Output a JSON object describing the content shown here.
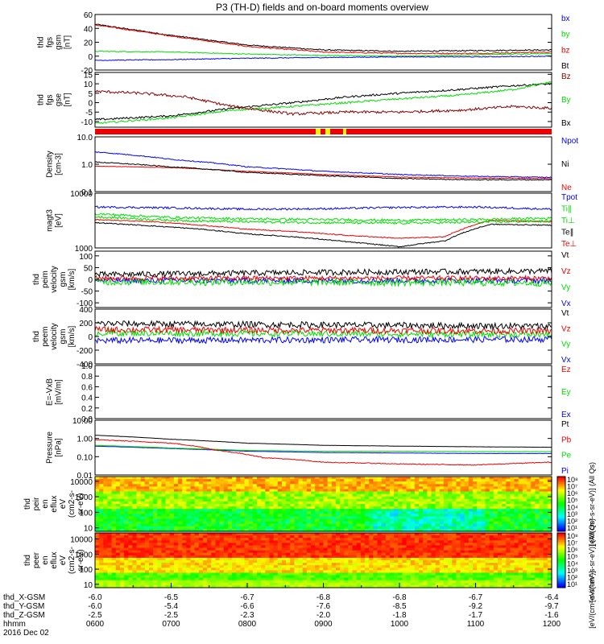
{
  "title": "P3 (TH-D) fields and on-board moments overview",
  "colors": {
    "black": "#000000",
    "red": "#ee0000",
    "green": "#00dd00",
    "blue": "#0000ff",
    "darkred": "#8b0000",
    "yellow": "#ffee00"
  },
  "chart_data": [
    {
      "type": "line",
      "name": "fgs-gsm",
      "ylabel": [
        "thd",
        "fgs",
        "gsm",
        "[nT]"
      ],
      "yscale": "linear",
      "ylim": [
        -20,
        60
      ],
      "ticks": [
        {
          "v": 60,
          "t": "60"
        },
        {
          "v": 40,
          "t": "40"
        },
        {
          "v": 20,
          "t": "20"
        },
        {
          "v": 0,
          "t": "0"
        },
        {
          "v": -20,
          "t": "-20"
        }
      ],
      "series": [
        {
          "name": "Bt",
          "color": "black",
          "x": [
            0,
            1,
            2,
            3,
            4,
            5,
            6
          ],
          "values": [
            46,
            30,
            16,
            9,
            7,
            8,
            9
          ],
          "noise": 0.8
        },
        {
          "name": "bz",
          "color": "red",
          "x": [
            0,
            1,
            2,
            3,
            4,
            5,
            6
          ],
          "values": [
            45,
            29,
            14,
            6,
            4,
            4,
            6
          ],
          "noise": 0.8
        },
        {
          "name": "by",
          "color": "green",
          "x": [
            0,
            1,
            2,
            3,
            4,
            5,
            6
          ],
          "values": [
            7,
            6,
            3,
            1,
            0,
            2,
            4
          ],
          "noise": 0.6
        },
        {
          "name": "bx",
          "color": "blue",
          "x": [
            0,
            1,
            2,
            3,
            4,
            5,
            6
          ],
          "values": [
            -6,
            -5,
            -3,
            -2,
            -1,
            -1,
            0
          ],
          "noise": 0.6
        }
      ]
    },
    {
      "type": "line",
      "name": "fgs-gse",
      "ylabel": [
        "thd",
        "fgs",
        "gse",
        "[nT]"
      ],
      "yscale": "linear",
      "ylim": [
        -13,
        16
      ],
      "ticks": [
        {
          "v": 15,
          "t": "15"
        },
        {
          "v": 10,
          "t": "10"
        },
        {
          "v": 5,
          "t": "5"
        },
        {
          "v": 0,
          "t": "0"
        },
        {
          "v": -5,
          "t": "-5"
        },
        {
          "v": -10,
          "t": "-10"
        }
      ],
      "series": [
        {
          "name": "Bx",
          "color": "black",
          "x": [
            0,
            1,
            1.8,
            2.6,
            3.3,
            4,
            4.8,
            5.5,
            6
          ],
          "values": [
            -9,
            -7,
            -3,
            0,
            3,
            5,
            7,
            9,
            10
          ],
          "noise": 0.5
        },
        {
          "name": "By",
          "color": "green",
          "x": [
            0,
            1,
            1.8,
            2.6,
            3.3,
            4,
            4.8,
            5.5,
            6
          ],
          "values": [
            -11,
            -8,
            -4,
            -2,
            0,
            2,
            4,
            7,
            11
          ],
          "noise": 0.5
        },
        {
          "name": "Bz",
          "color": "darkred",
          "x": [
            0,
            0.6,
            1.2,
            1.8,
            2.6,
            3.3,
            4,
            4.8,
            5.5,
            6
          ],
          "values": [
            6,
            5,
            3,
            -2,
            -6,
            -5,
            -5,
            -4,
            -2,
            -3
          ],
          "noise": 0.7
        }
      ]
    },
    {
      "type": "line",
      "name": "density",
      "ylabel": [
        "Density",
        "[cm-3]"
      ],
      "yscale": "log",
      "ylim": [
        0.1,
        10
      ],
      "ticks": [
        {
          "v": 10,
          "t": "10.0"
        },
        {
          "v": 1,
          "t": "1.0"
        },
        {
          "v": 0.1,
          "t": "0.1"
        }
      ],
      "series": [
        {
          "name": "Ne",
          "color": "red",
          "x": [
            0,
            1,
            2,
            3,
            4,
            5,
            6
          ],
          "values": [
            0.85,
            0.75,
            0.55,
            0.42,
            0.34,
            0.31,
            0.3
          ],
          "noise": 0.02
        },
        {
          "name": "Ni",
          "color": "black",
          "x": [
            0,
            1,
            2,
            3,
            4,
            5,
            6
          ],
          "values": [
            1.2,
            0.8,
            0.5,
            0.38,
            0.3,
            0.27,
            0.27
          ],
          "noise": 0.04
        },
        {
          "name": "Npot",
          "color": "blue",
          "x": [
            0,
            1,
            2,
            3,
            4,
            5,
            6
          ],
          "values": [
            2.8,
            1.5,
            0.8,
            0.55,
            0.42,
            0.36,
            0.33
          ],
          "noise": 0.04
        }
      ]
    },
    {
      "type": "line",
      "name": "temperature",
      "ylabel": [
        "magt3",
        "[eV]"
      ],
      "yscale": "log",
      "ylim": [
        1000,
        10000
      ],
      "ticks": [
        {
          "v": 10000,
          "t": "10000"
        },
        {
          "v": 1000,
          "t": "1000"
        }
      ],
      "series": [
        {
          "name": "Te⊥",
          "color": "red",
          "x": [
            0,
            0.8,
            1.4,
            2,
            2.6,
            3.3,
            4,
            4.6,
            5.2,
            6
          ],
          "values": [
            3300,
            3000,
            2600,
            2200,
            2000,
            1700,
            1500,
            1600,
            3200,
            3000
          ],
          "noise": 0.02
        },
        {
          "name": "Te∥",
          "color": "black",
          "x": [
            0,
            0.8,
            1.4,
            2,
            2.6,
            3.3,
            4,
            4.6,
            5.2,
            6
          ],
          "values": [
            2900,
            2500,
            2200,
            1800,
            1600,
            1300,
            1050,
            1350,
            2700,
            2600
          ],
          "noise": 0.02
        },
        {
          "name": "Ti⊥",
          "color": "green",
          "x": [
            0,
            1,
            2,
            3,
            4,
            5,
            6
          ],
          "values": [
            4200,
            3600,
            3400,
            3300,
            3200,
            3300,
            3500
          ],
          "noise": 0.05
        },
        {
          "name": "Ti∥",
          "color": "green",
          "x": [
            0,
            1,
            2,
            3,
            4,
            5,
            6
          ],
          "values": [
            3700,
            3200,
            3000,
            2900,
            2850,
            2950,
            3100
          ],
          "noise": 0.05
        },
        {
          "name": "Tpot",
          "color": "blue",
          "x": [
            0,
            1,
            2,
            3,
            4,
            5,
            6
          ],
          "values": [
            5600,
            5400,
            5100,
            5200,
            5500,
            5600,
            5100
          ],
          "noise": 0.04
        }
      ]
    },
    {
      "type": "line",
      "name": "peim-velocity",
      "ylabel": [
        "thd",
        "peim",
        "velocity",
        "gsm",
        "[km/s]"
      ],
      "yscale": "linear",
      "ylim": [
        -120,
        120
      ],
      "ticks": [
        {
          "v": 100,
          "t": "100"
        },
        {
          "v": 50,
          "t": "50"
        },
        {
          "v": 0,
          "t": "0"
        },
        {
          "v": -50,
          "t": "-50"
        },
        {
          "v": -100,
          "t": "-100"
        }
      ],
      "series": [
        {
          "name": "Vx",
          "color": "blue",
          "x": [
            0,
            6
          ],
          "values": [
            -5,
            -5
          ],
          "noise": 12
        },
        {
          "name": "Vy",
          "color": "green",
          "x": [
            0,
            6
          ],
          "values": [
            -10,
            -15
          ],
          "noise": 15
        },
        {
          "name": "Vz",
          "color": "red",
          "x": [
            0,
            6
          ],
          "values": [
            5,
            5
          ],
          "noise": 10
        },
        {
          "name": "Vt",
          "color": "black",
          "x": [
            0,
            3,
            6
          ],
          "values": [
            20,
            30,
            35
          ],
          "noise": 12
        }
      ]
    },
    {
      "type": "line",
      "name": "peem-velocity",
      "ylabel": [
        "thd",
        "peem",
        "velocity",
        "gsm",
        "[km/s]"
      ],
      "yscale": "linear",
      "ylim": [
        -400,
        400
      ],
      "ticks": [
        {
          "v": 400,
          "t": "400"
        },
        {
          "v": 200,
          "t": "200"
        },
        {
          "v": 0,
          "t": "0"
        },
        {
          "v": -200,
          "t": "-200"
        },
        {
          "v": -400,
          "t": "-400"
        }
      ],
      "series": [
        {
          "name": "Vx",
          "color": "blue",
          "x": [
            0,
            6
          ],
          "values": [
            -60,
            -40
          ],
          "noise": 45
        },
        {
          "name": "Vy",
          "color": "green",
          "x": [
            0,
            6
          ],
          "values": [
            50,
            30
          ],
          "noise": 45
        },
        {
          "name": "Vz",
          "color": "red",
          "x": [
            0,
            6
          ],
          "values": [
            100,
            80
          ],
          "noise": 45
        },
        {
          "name": "Vt",
          "color": "black",
          "x": [
            0,
            6
          ],
          "values": [
            190,
            150
          ],
          "noise": 45
        }
      ]
    },
    {
      "type": "line",
      "name": "e-field",
      "ylabel": [
        "E=-VxB",
        "[mV/m]"
      ],
      "yscale": "linear",
      "ylim": [
        0,
        1
      ],
      "ticks": [
        {
          "v": 1,
          "t": "1.0"
        },
        {
          "v": 0.8,
          "t": "0.8"
        },
        {
          "v": 0.6,
          "t": "0.6"
        },
        {
          "v": 0.4,
          "t": "0.4"
        },
        {
          "v": 0.2,
          "t": "0.2"
        },
        {
          "v": 0,
          "t": "0.0"
        }
      ],
      "series": [
        {
          "name": "Ex",
          "color": "blue",
          "x": [],
          "values": []
        },
        {
          "name": "Ey",
          "color": "green",
          "x": [],
          "values": []
        },
        {
          "name": "Ez",
          "color": "red",
          "x": [],
          "values": []
        }
      ]
    },
    {
      "type": "line",
      "name": "pressure",
      "ylabel": [
        "Pressure",
        "[nPa]"
      ],
      "yscale": "log",
      "ylim": [
        0.01,
        10
      ],
      "ticks": [
        {
          "v": 10,
          "t": "10.00"
        },
        {
          "v": 1,
          "t": "1.00"
        },
        {
          "v": 0.1,
          "t": "0.10"
        },
        {
          "v": 0.01,
          "t": "0.01"
        }
      ],
      "series": [
        {
          "name": "Pi",
          "color": "blue",
          "x": [
            0,
            1,
            2,
            3,
            4,
            5,
            6
          ],
          "values": [
            0.38,
            0.28,
            0.2,
            0.17,
            0.16,
            0.15,
            0.15
          ],
          "noise": 0.01
        },
        {
          "name": "Pe",
          "color": "green",
          "x": [
            0,
            1,
            2,
            3,
            4,
            5,
            6
          ],
          "values": [
            0.42,
            0.3,
            0.22,
            0.2,
            0.2,
            0.19,
            0.19
          ],
          "noise": 0.01
        },
        {
          "name": "Pb",
          "color": "red",
          "x": [
            0,
            1,
            1.6,
            2.2,
            3,
            4,
            5,
            6
          ],
          "values": [
            0.85,
            0.55,
            0.22,
            0.09,
            0.05,
            0.04,
            0.035,
            0.05
          ],
          "noise": 0.05
        },
        {
          "name": "Pt",
          "color": "black",
          "x": [
            0,
            1,
            2,
            3,
            4,
            5,
            6
          ],
          "values": [
            1.5,
            0.9,
            0.55,
            0.42,
            0.38,
            0.35,
            0.33
          ],
          "noise": 0.01
        }
      ]
    },
    {
      "type": "heatmap",
      "name": "peir-en-eflux",
      "ylabel": [
        "thd",
        "peir",
        "en",
        "eflux",
        "eV",
        "(cm2-s-",
        "sr-eV)"
      ],
      "yscale": "log",
      "ylim": [
        6,
        20000
      ],
      "ticks": [
        {
          "v": 10000,
          "t": "10000"
        },
        {
          "v": 1000,
          "t": "1000"
        },
        {
          "v": 100,
          "t": "100"
        },
        {
          "v": 10,
          "t": "10"
        }
      ]
    },
    {
      "type": "heatmap",
      "name": "peer-en-eflux",
      "ylabel": [
        "thd",
        "peer",
        "en",
        "eflux",
        "eV",
        "(cm2-s-",
        "sr-eV)"
      ],
      "yscale": "log",
      "ylim": [
        6,
        25000
      ],
      "ticks": [
        {
          "v": 10000,
          "t": "10000"
        },
        {
          "v": 1000,
          "t": "1000"
        },
        {
          "v": 100,
          "t": "100"
        },
        {
          "v": 10,
          "t": "10"
        }
      ]
    }
  ],
  "xaxis": {
    "rows": [
      {
        "label": "thd_X-GSM",
        "values": [
          "-6.0",
          "-6.5",
          "-6.7",
          "-6.8",
          "-6.8",
          "-6.7",
          "-6.4"
        ]
      },
      {
        "label": "thd_Y-GSM",
        "values": [
          "-6.0",
          "-5.4",
          "-6.6",
          "-7.6",
          "-8.5",
          "-9.2",
          "-9.7"
        ]
      },
      {
        "label": "thd_Z-GSM",
        "values": [
          "-2.5",
          "-2.5",
          "-2.3",
          "-2.0",
          "-1.8",
          "-1.7",
          "-1.6"
        ]
      },
      {
        "label": "hhmm",
        "values": [
          "0600",
          "0700",
          "0800",
          "0900",
          "1000",
          "1100",
          "1200"
        ]
      }
    ],
    "date": "2016 Dec 02"
  },
  "colorbar": {
    "label_ions": "[eV/(cm²-s-sr-eV)] (All Qs)",
    "label_electrons": "[eV/(cm²-s-sr-eV)] (All Qs)",
    "ticks_upper": [
      "10⁸",
      "10⁷",
      "10⁶",
      "10⁵",
      "10⁴",
      "10³",
      "10²",
      "10¹"
    ],
    "ticks_lower": [
      "10⁸",
      "10⁷",
      "10⁶",
      "10⁵",
      "10⁴",
      "10³",
      "10²",
      "10¹"
    ],
    "bottom_label": "[eV/(cm²-s-sr-eV)]"
  }
}
